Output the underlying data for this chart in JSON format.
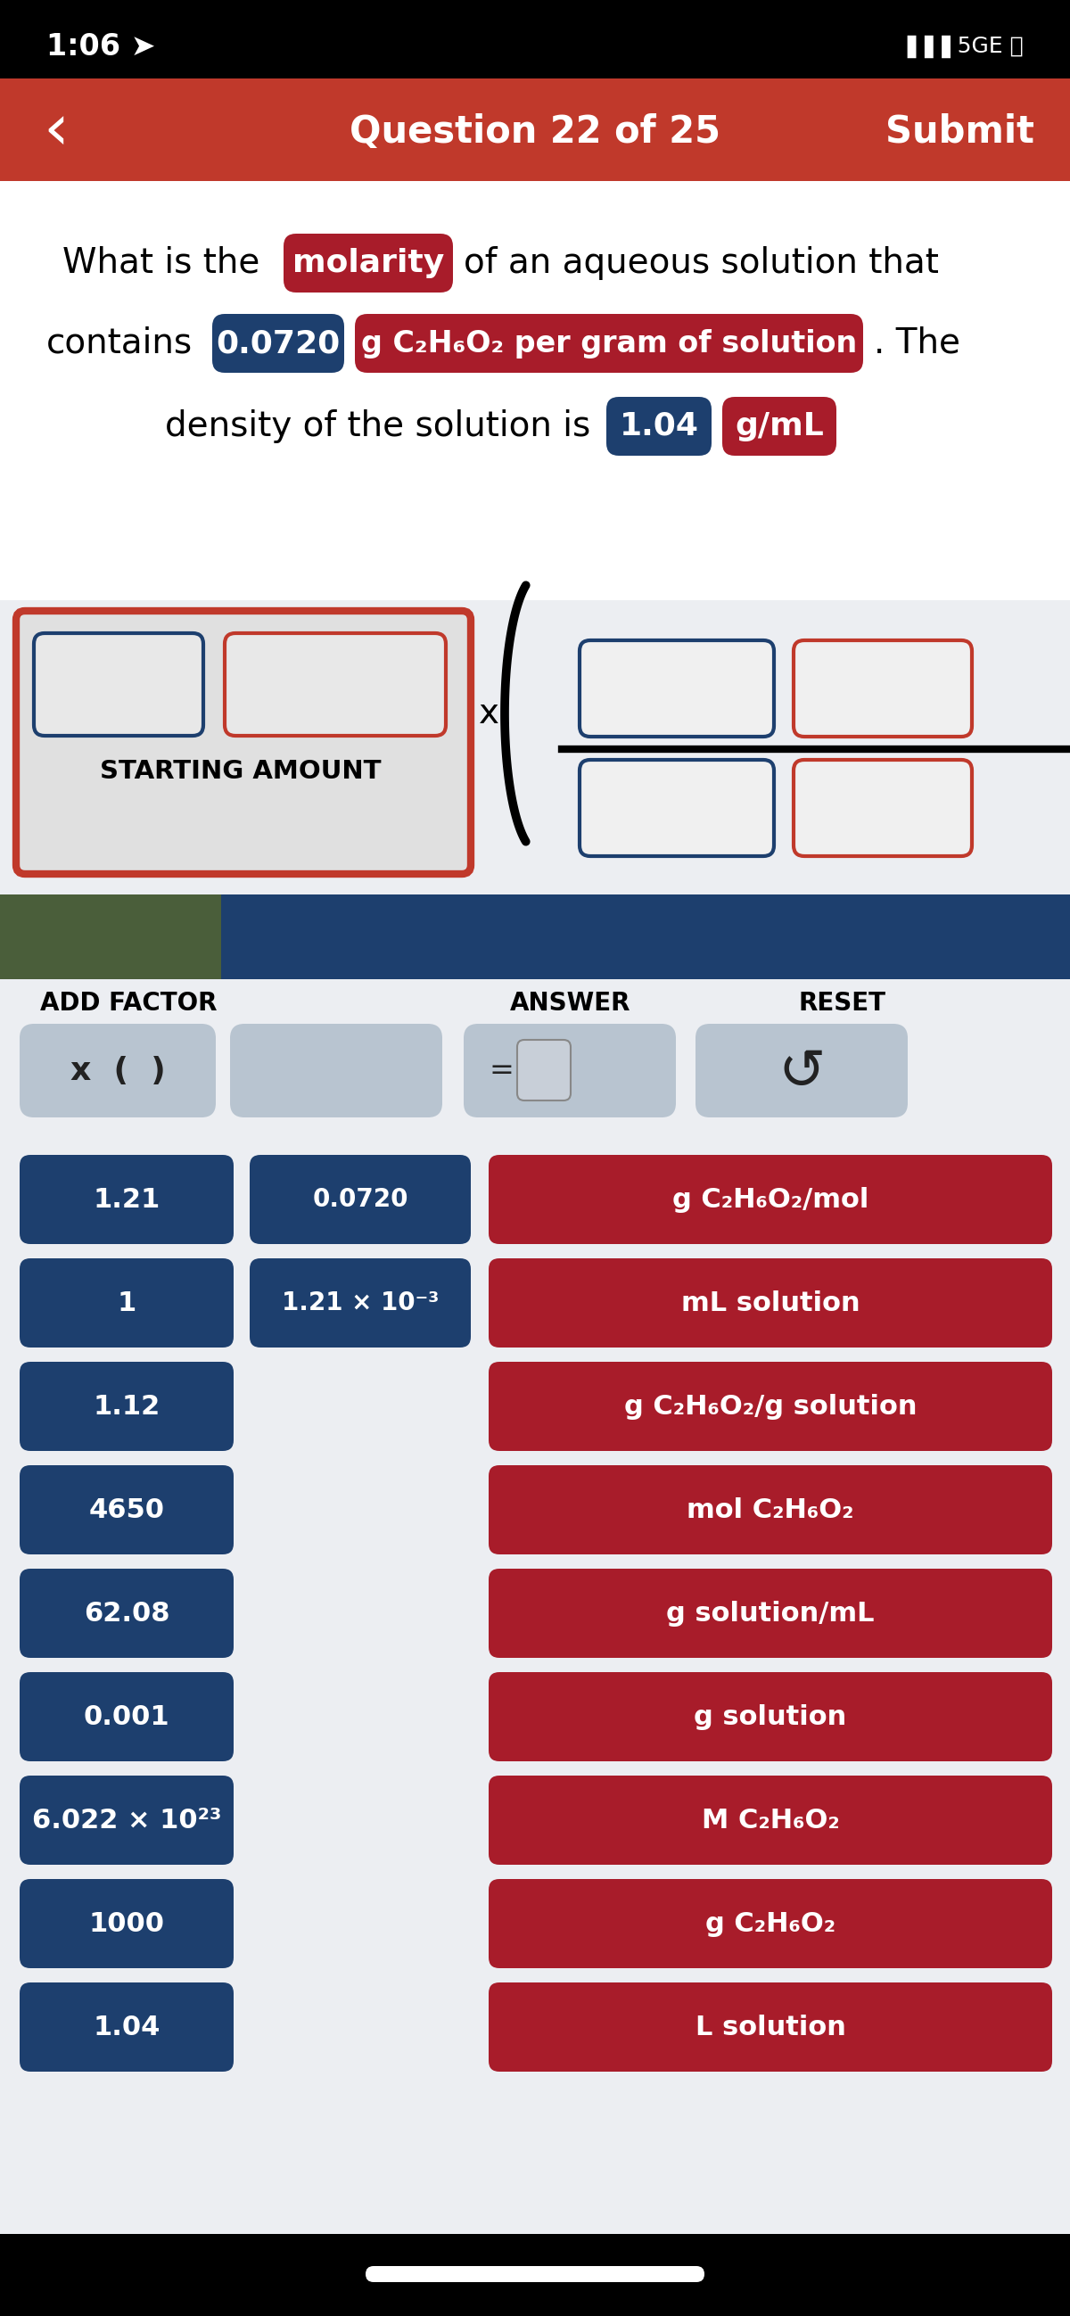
{
  "bg_color": "#eceef2",
  "status_bar_color": "#000000",
  "status_bar_text": "1:06",
  "header_color": "#c0392b",
  "header_text": "Question 22 of 25",
  "header_submit": "Submit",
  "blue_btn_color": "#1d3f6e",
  "red_btn_color": "#a81c2a",
  "light_btn_color": "#b8c4d0",
  "red_highlight_color": "#a81c2a",
  "dark_red_badge": "#a81c2a",
  "border_red": "#c0392b",
  "border_blue": "#1d3f6e",
  "separator_left_color": "#4a5e3a",
  "separator_right_color": "#1d3f6e",
  "starting_amount_label": "STARTING AMOUNT",
  "add_factor_label": "ADD FACTOR",
  "answer_label": "ANSWER",
  "reset_label": "RESET",
  "left_buttons": [
    "1.21",
    "1",
    "1.12",
    "4650",
    "62.08",
    "0.001",
    "6.022 × 10²³",
    "1000",
    "1.04"
  ],
  "mid_buttons": [
    "0.0720",
    "1.21 × 10⁻³",
    "",
    "",
    "",
    "",
    "",
    "",
    ""
  ],
  "right_buttons": [
    "g C₂H₆O₂/mol",
    "mL solution",
    "g C₂H₆O₂/g solution",
    "mol C₂H₆O₂",
    "g solution/mL",
    "g solution",
    "M C₂H₆O₂",
    "g C₂H₆O₂",
    "L solution"
  ]
}
